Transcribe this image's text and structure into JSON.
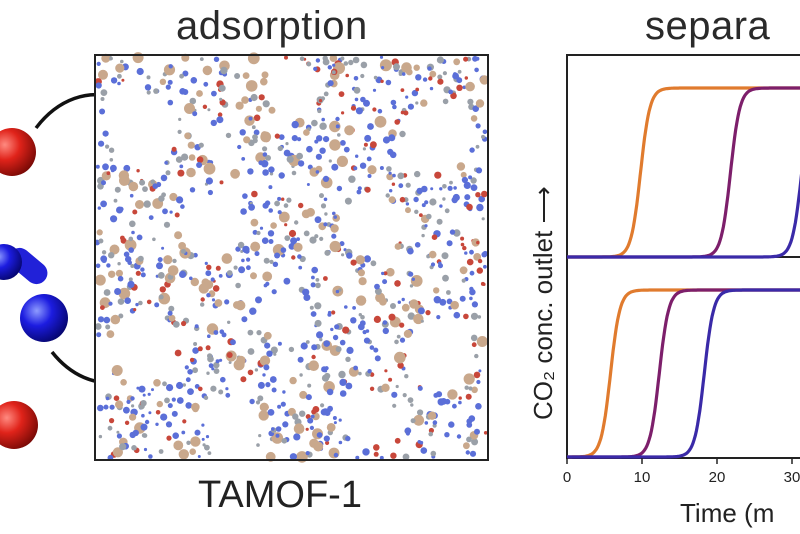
{
  "titles": {
    "adsorption": "adsorption",
    "separation": "separa",
    "framework_label": "TAMOF-1"
  },
  "colors": {
    "oxygen_atom": "#d9251c",
    "carbon_atom": "#1b1bd6",
    "curve_orange": "#e07b2e",
    "curve_purple": "#7d1f6b",
    "curve_violet": "#3a2aa8",
    "framework_blue": "#5b6fd8",
    "framework_red": "#c8473a",
    "framework_tan": "#c9a88c",
    "framework_gray": "#9aa0a8"
  },
  "chart_data": {
    "type": "line",
    "xlabel": "Time (m",
    "ylabel": "CO₂ conc. outlet ⟶",
    "x_ticks": [
      "0",
      "10",
      "20",
      "30"
    ],
    "xlim": [
      0,
      32
    ],
    "panels": [
      {
        "name": "top",
        "series": [
          {
            "color": "#e07b2e",
            "breakthrough": 8.5
          },
          {
            "color": "#7d1f6b",
            "breakthrough": 20.5
          },
          {
            "color": "#3a2aa8",
            "breakthrough": 30
          }
        ]
      },
      {
        "name": "bottom",
        "series": [
          {
            "color": "#e07b2e",
            "breakthrough": 4.5
          },
          {
            "color": "#7d1f6b",
            "breakthrough": 11
          },
          {
            "color": "#3a2aa8",
            "breakthrough": 17
          }
        ]
      }
    ]
  }
}
